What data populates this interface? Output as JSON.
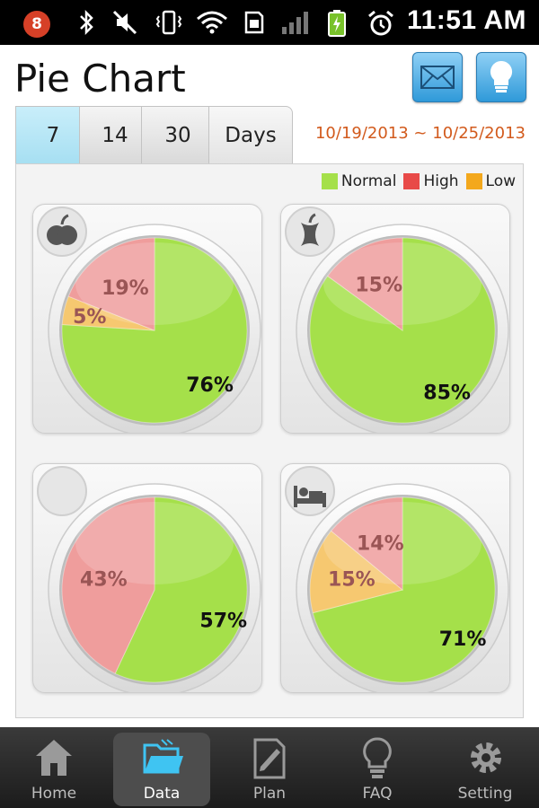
{
  "status_bar": {
    "notification_count": "8",
    "time": "11:51 AM",
    "icons": [
      "bluetooth-icon",
      "mute-icon",
      "vibrate-icon",
      "wifi-icon",
      "sim-icon",
      "signal-icon",
      "battery-charging-icon",
      "alarm-icon"
    ]
  },
  "header": {
    "title": "Pie Chart",
    "buttons": [
      "mail-icon",
      "bulb-icon"
    ]
  },
  "tabs": {
    "items": [
      "7",
      "14",
      "30"
    ],
    "active": "7",
    "unit": "Days"
  },
  "date_range": "10/19/2013 ~ 10/25/2013",
  "legend": [
    {
      "label": "Normal",
      "color": "#a5e04a"
    },
    {
      "label": "High",
      "color": "#e84a48"
    },
    {
      "label": "Low",
      "color": "#f3a81d"
    }
  ],
  "colors": {
    "normal": "#a5e04a",
    "high": "#e84a48",
    "low": "#f3a81d",
    "high_faded": "#ef9d9c",
    "low_faded": "#f6c870",
    "accent_date": "#d25a1c"
  },
  "chart_data": [
    {
      "type": "pie",
      "icon": "apple-icon",
      "slices": [
        {
          "label": "Normal",
          "value": 76
        },
        {
          "label": "Low",
          "value": 5
        },
        {
          "label": "High",
          "value": 19
        }
      ],
      "labels": [
        "76%",
        "5%",
        "19%"
      ]
    },
    {
      "type": "pie",
      "icon": "apple-core-icon",
      "slices": [
        {
          "label": "Normal",
          "value": 85
        },
        {
          "label": "High",
          "value": 15
        }
      ],
      "labels": [
        "85%",
        "15%"
      ]
    },
    {
      "type": "pie",
      "icon": "moon-icon",
      "slices": [
        {
          "label": "Normal",
          "value": 57
        },
        {
          "label": "High",
          "value": 43
        }
      ],
      "labels": [
        "57%",
        "43%"
      ]
    },
    {
      "type": "pie",
      "icon": "bed-icon",
      "slices": [
        {
          "label": "Normal",
          "value": 71
        },
        {
          "label": "Low",
          "value": 15
        },
        {
          "label": "High",
          "value": 14
        }
      ],
      "labels": [
        "71%",
        "15%",
        "14%"
      ]
    }
  ],
  "bottom_nav": [
    {
      "label": "Home",
      "icon": "home-icon"
    },
    {
      "label": "Data",
      "icon": "folder-icon",
      "active": true
    },
    {
      "label": "Plan",
      "icon": "plan-icon"
    },
    {
      "label": "FAQ",
      "icon": "lightbulb-icon"
    },
    {
      "label": "Setting",
      "icon": "gear-icon"
    }
  ]
}
